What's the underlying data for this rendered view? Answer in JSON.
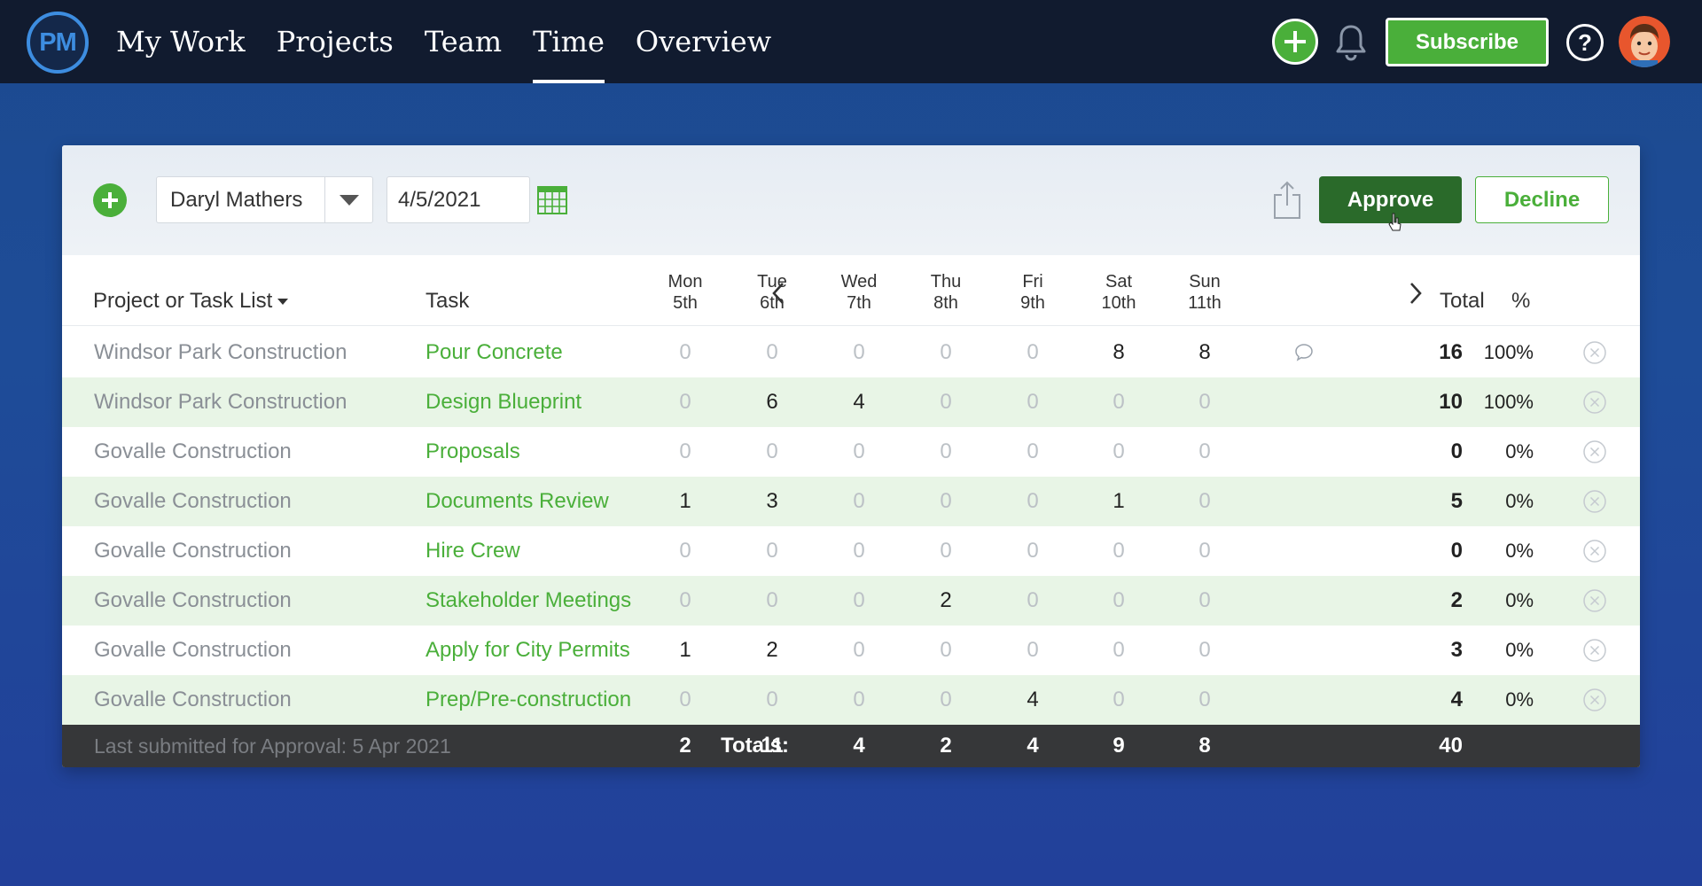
{
  "app": {
    "logo_text": "PM"
  },
  "nav": {
    "items": [
      {
        "label": "My Work",
        "active": false
      },
      {
        "label": "Projects",
        "active": false
      },
      {
        "label": "Team",
        "active": false
      },
      {
        "label": "Time",
        "active": true
      },
      {
        "label": "Overview",
        "active": false
      }
    ],
    "subscribe_label": "Subscribe",
    "help_label": "?"
  },
  "toolbar": {
    "user": "Daryl Mathers",
    "date": "4/5/2021",
    "approve_label": "Approve",
    "decline_label": "Decline"
  },
  "table": {
    "headers": {
      "project": "Project or Task List",
      "task": "Task",
      "total": "Total",
      "percent": "%"
    },
    "days": [
      {
        "name": "Mon",
        "date": "5th"
      },
      {
        "name": "Tue",
        "date": "6th"
      },
      {
        "name": "Wed",
        "date": "7th"
      },
      {
        "name": "Thu",
        "date": "8th"
      },
      {
        "name": "Fri",
        "date": "9th"
      },
      {
        "name": "Sat",
        "date": "10th"
      },
      {
        "name": "Sun",
        "date": "11th"
      }
    ],
    "rows": [
      {
        "project": "Windsor Park Construction",
        "task": "Pour Concrete",
        "hours": [
          "0",
          "0",
          "0",
          "0",
          "0",
          "8",
          "8"
        ],
        "total": "16",
        "percent": "100%",
        "comment_on_day": 5
      },
      {
        "project": "Windsor Park Construction",
        "task": "Design Blueprint",
        "hours": [
          "0",
          "6",
          "4",
          "0",
          "0",
          "0",
          "0"
        ],
        "total": "10",
        "percent": "100%"
      },
      {
        "project": "Govalle Construction",
        "task": "Proposals",
        "hours": [
          "0",
          "0",
          "0",
          "0",
          "0",
          "0",
          "0"
        ],
        "total": "0",
        "percent": "0%"
      },
      {
        "project": "Govalle Construction",
        "task": "Documents Review",
        "hours": [
          "1",
          "3",
          "0",
          "0",
          "0",
          "1",
          "0"
        ],
        "total": "5",
        "percent": "0%"
      },
      {
        "project": "Govalle Construction",
        "task": "Hire Crew",
        "hours": [
          "0",
          "0",
          "0",
          "0",
          "0",
          "0",
          "0"
        ],
        "total": "0",
        "percent": "0%"
      },
      {
        "project": "Govalle Construction",
        "task": "Stakeholder Meetings",
        "hours": [
          "0",
          "0",
          "0",
          "2",
          "0",
          "0",
          "0"
        ],
        "total": "2",
        "percent": "0%"
      },
      {
        "project": "Govalle Construction",
        "task": "Apply for City Permits",
        "hours": [
          "1",
          "2",
          "0",
          "0",
          "0",
          "0",
          "0"
        ],
        "total": "3",
        "percent": "0%"
      },
      {
        "project": "Govalle Construction",
        "task": "Prep/Pre-construction",
        "hours": [
          "0",
          "0",
          "0",
          "0",
          "4",
          "0",
          "0"
        ],
        "total": "4",
        "percent": "0%"
      }
    ],
    "footer": {
      "note": "Last submitted for Approval: 5 Apr 2021",
      "totals_label": "Totals:",
      "day_totals": [
        "2",
        "11",
        "4",
        "2",
        "4",
        "9",
        "8"
      ],
      "grand_total": "40"
    }
  },
  "colors": {
    "accent_green": "#4aaf3a",
    "approve_green": "#2a6a2a",
    "nav_bg": "#111b2f"
  }
}
